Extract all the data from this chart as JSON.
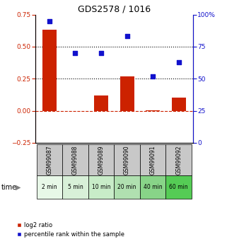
{
  "title": "GDS2578 / 1016",
  "samples": [
    "GSM99087",
    "GSM99088",
    "GSM99089",
    "GSM99090",
    "GSM99091",
    "GSM99092"
  ],
  "time_labels": [
    "2 min",
    "5 min",
    "10 min",
    "20 min",
    "40 min",
    "60 min"
  ],
  "log2_ratio": [
    0.63,
    0.0,
    0.12,
    0.27,
    0.005,
    0.1
  ],
  "percentile_rank": [
    95,
    70,
    70,
    83,
    52,
    63
  ],
  "bar_color": "#cc2200",
  "dot_color": "#1111cc",
  "left_ylim": [
    -0.25,
    0.75
  ],
  "right_ylim": [
    0,
    100
  ],
  "left_yticks": [
    -0.25,
    0.0,
    0.25,
    0.5,
    0.75
  ],
  "right_yticks": [
    0,
    25,
    50,
    75,
    100
  ],
  "right_yticklabels": [
    "0",
    "25",
    "50",
    "75",
    "100%"
  ],
  "dotted_lines": [
    0.25,
    0.5
  ],
  "zero_dashed_color": "#cc2200",
  "gsm_bg_color": "#c8c8c8",
  "time_bg_colors": [
    "#e8f8e8",
    "#d8f0d8",
    "#c8ecc8",
    "#b0e0b0",
    "#88d488",
    "#55cc55"
  ],
  "legend_labels": [
    "log2 ratio",
    "percentile rank within the sample"
  ],
  "legend_colors": [
    "#cc2200",
    "#1111cc"
  ]
}
